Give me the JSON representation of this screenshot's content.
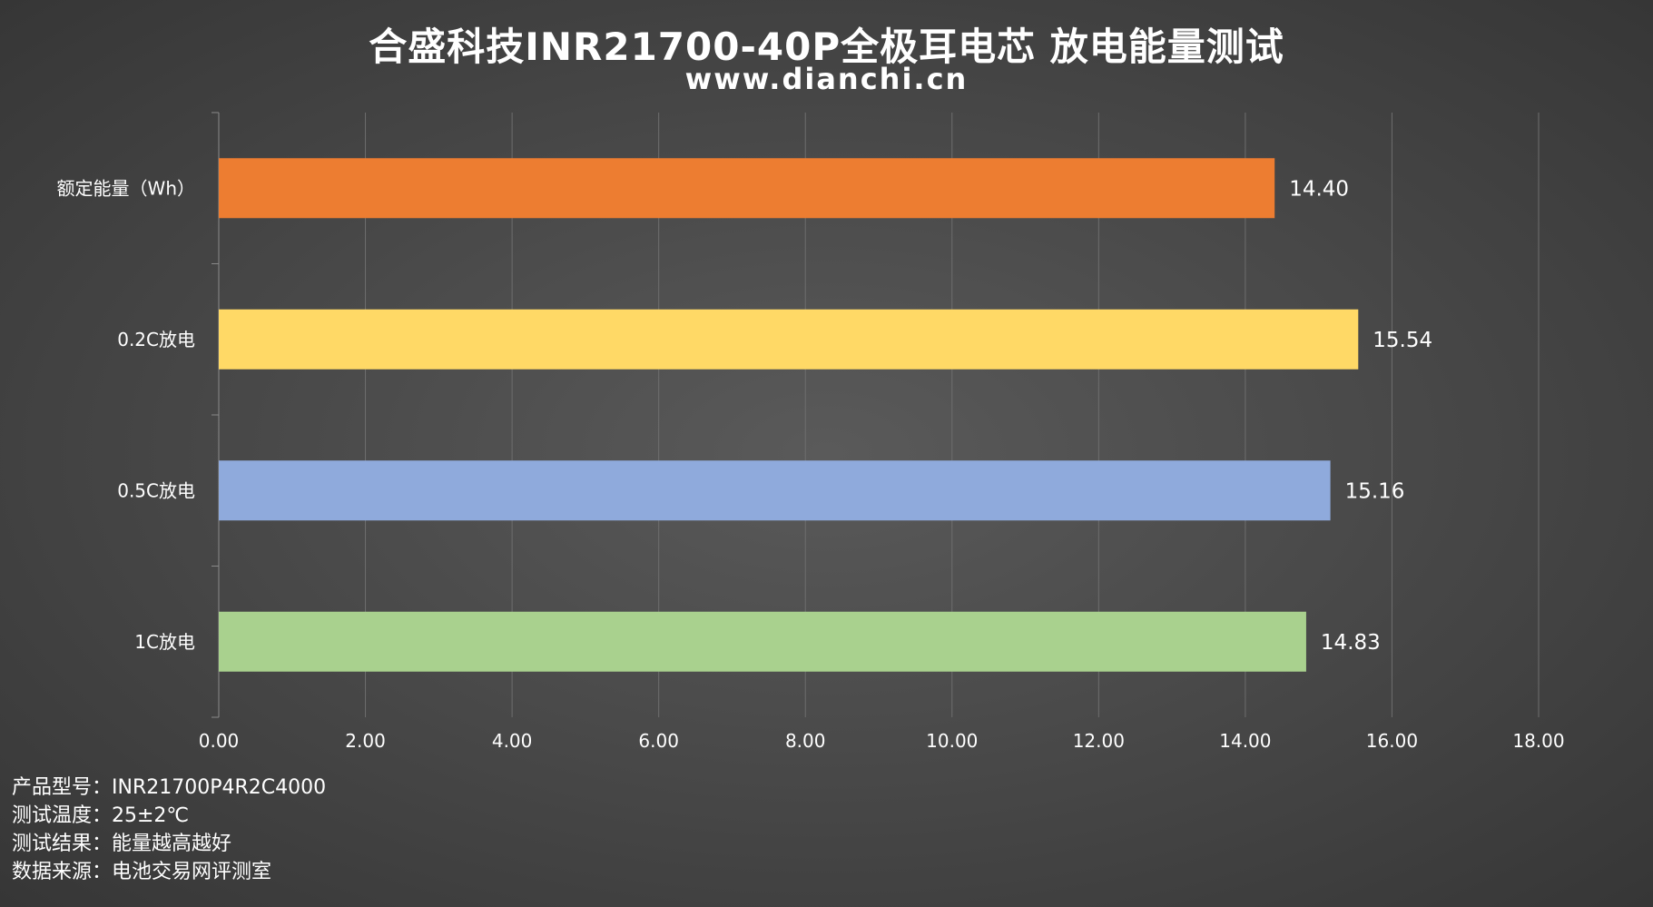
{
  "chart_data": {
    "type": "bar",
    "orientation": "horizontal",
    "title": "合盛科技INR21700-40P全极耳电芯 放电能量测试",
    "subtitle": "www.dianchi.cn",
    "categories": [
      "额定能量（Wh）",
      "0.2C放电",
      "0.5C放电",
      "1C放电"
    ],
    "values": [
      14.4,
      15.54,
      15.16,
      14.83
    ],
    "value_labels": [
      "14.40",
      "15.54",
      "15.16",
      "14.83"
    ],
    "bar_colors": [
      "#ED7D31",
      "#FFD966",
      "#8FAADC",
      "#A9D18E"
    ],
    "xlim": [
      0,
      18
    ],
    "xticks": [
      "0.00",
      "2.00",
      "4.00",
      "6.00",
      "8.00",
      "10.00",
      "12.00",
      "14.00",
      "16.00",
      "18.00"
    ],
    "xlabel": "",
    "ylabel": "",
    "grid": "vertical",
    "legend": "none"
  },
  "notes": [
    "产品型号：INR21700P4R2C4000",
    "测试温度：25±2℃",
    "测试结果：能量越高越好",
    "数据来源：电池交易网评测室"
  ]
}
